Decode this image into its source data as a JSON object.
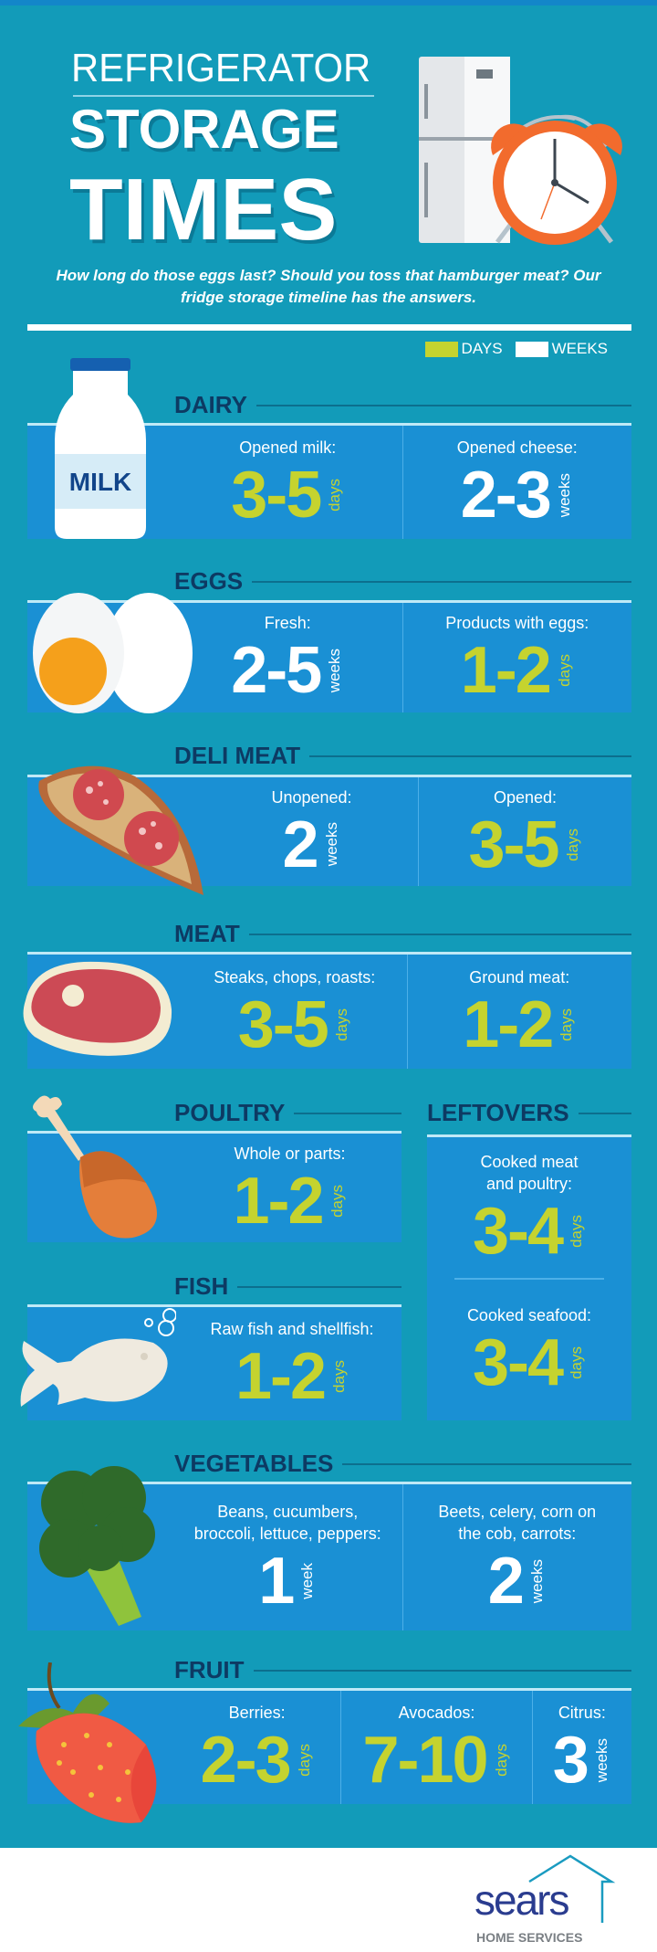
{
  "header": {
    "title_line1": "REFRIGERATOR",
    "title_line2": "STORAGE",
    "title_line3": "TIMES",
    "subtitle": "How long do those eggs last? Should you toss that hamburger meat? Our fridge storage timeline has the answers."
  },
  "legend": {
    "days_label": "DAYS",
    "weeks_label": "WEEKS",
    "days_color": "#c5d32f",
    "weeks_color": "#ffffff"
  },
  "colors": {
    "background": "#129bb9",
    "panel": "#1a90d4",
    "heading": "#0d3a63"
  },
  "sections": [
    {
      "title": "DAIRY",
      "icon": "milk-bottle-icon",
      "icon_text": "MILK",
      "items": [
        {
          "label": "Opened milk:",
          "value": "3-5",
          "unit": "days"
        },
        {
          "label": "Opened cheese:",
          "value": "2-3",
          "unit": "weeks"
        }
      ]
    },
    {
      "title": "EGGS",
      "icon": "eggs-icon",
      "items": [
        {
          "label": "Fresh:",
          "value": "2-5",
          "unit": "weeks"
        },
        {
          "label": "Products with eggs:",
          "value": "1-2",
          "unit": "days"
        }
      ]
    },
    {
      "title": "DELI MEAT",
      "icon": "salami-bread-icon",
      "items": [
        {
          "label": "Unopened:",
          "value": "2",
          "unit": "weeks"
        },
        {
          "label": "Opened:",
          "value": "3-5",
          "unit": "days"
        }
      ]
    },
    {
      "title": "MEAT",
      "icon": "steak-icon",
      "items": [
        {
          "label": "Steaks, chops, roasts:",
          "value": "3-5",
          "unit": "days"
        },
        {
          "label": "Ground meat:",
          "value": "1-2",
          "unit": "days"
        }
      ]
    },
    {
      "title": "POULTRY",
      "icon": "drumstick-icon",
      "items": [
        {
          "label": "Whole or parts:",
          "value": "1-2",
          "unit": "days"
        }
      ]
    },
    {
      "title": "LEFTOVERS",
      "items": [
        {
          "label": "Cooked meat\nand poultry:",
          "value": "3-4",
          "unit": "days"
        },
        {
          "label": "Cooked seafood:",
          "value": "3-4",
          "unit": "days"
        }
      ]
    },
    {
      "title": "FISH",
      "icon": "fish-icon",
      "items": [
        {
          "label": "Raw fish and shellfish:",
          "value": "1-2",
          "unit": "days"
        }
      ]
    },
    {
      "title": "VEGETABLES",
      "icon": "broccoli-icon",
      "items": [
        {
          "label": "Beans, cucumbers,\nbroccoli, lettuce, peppers:",
          "value": "1",
          "unit": "week"
        },
        {
          "label": "Beets, celery, corn on\nthe cob, carrots:",
          "value": "2",
          "unit": "weeks"
        }
      ]
    },
    {
      "title": "FRUIT",
      "icon": "strawberry-icon",
      "items": [
        {
          "label": "Berries:",
          "value": "2-3",
          "unit": "days"
        },
        {
          "label": "Avocados:",
          "value": "7-10",
          "unit": "days"
        },
        {
          "label": "Citrus:",
          "value": "3",
          "unit": "weeks"
        }
      ]
    }
  ],
  "footer": {
    "brand": "sears",
    "brand_sub": "HOME SERVICES"
  }
}
